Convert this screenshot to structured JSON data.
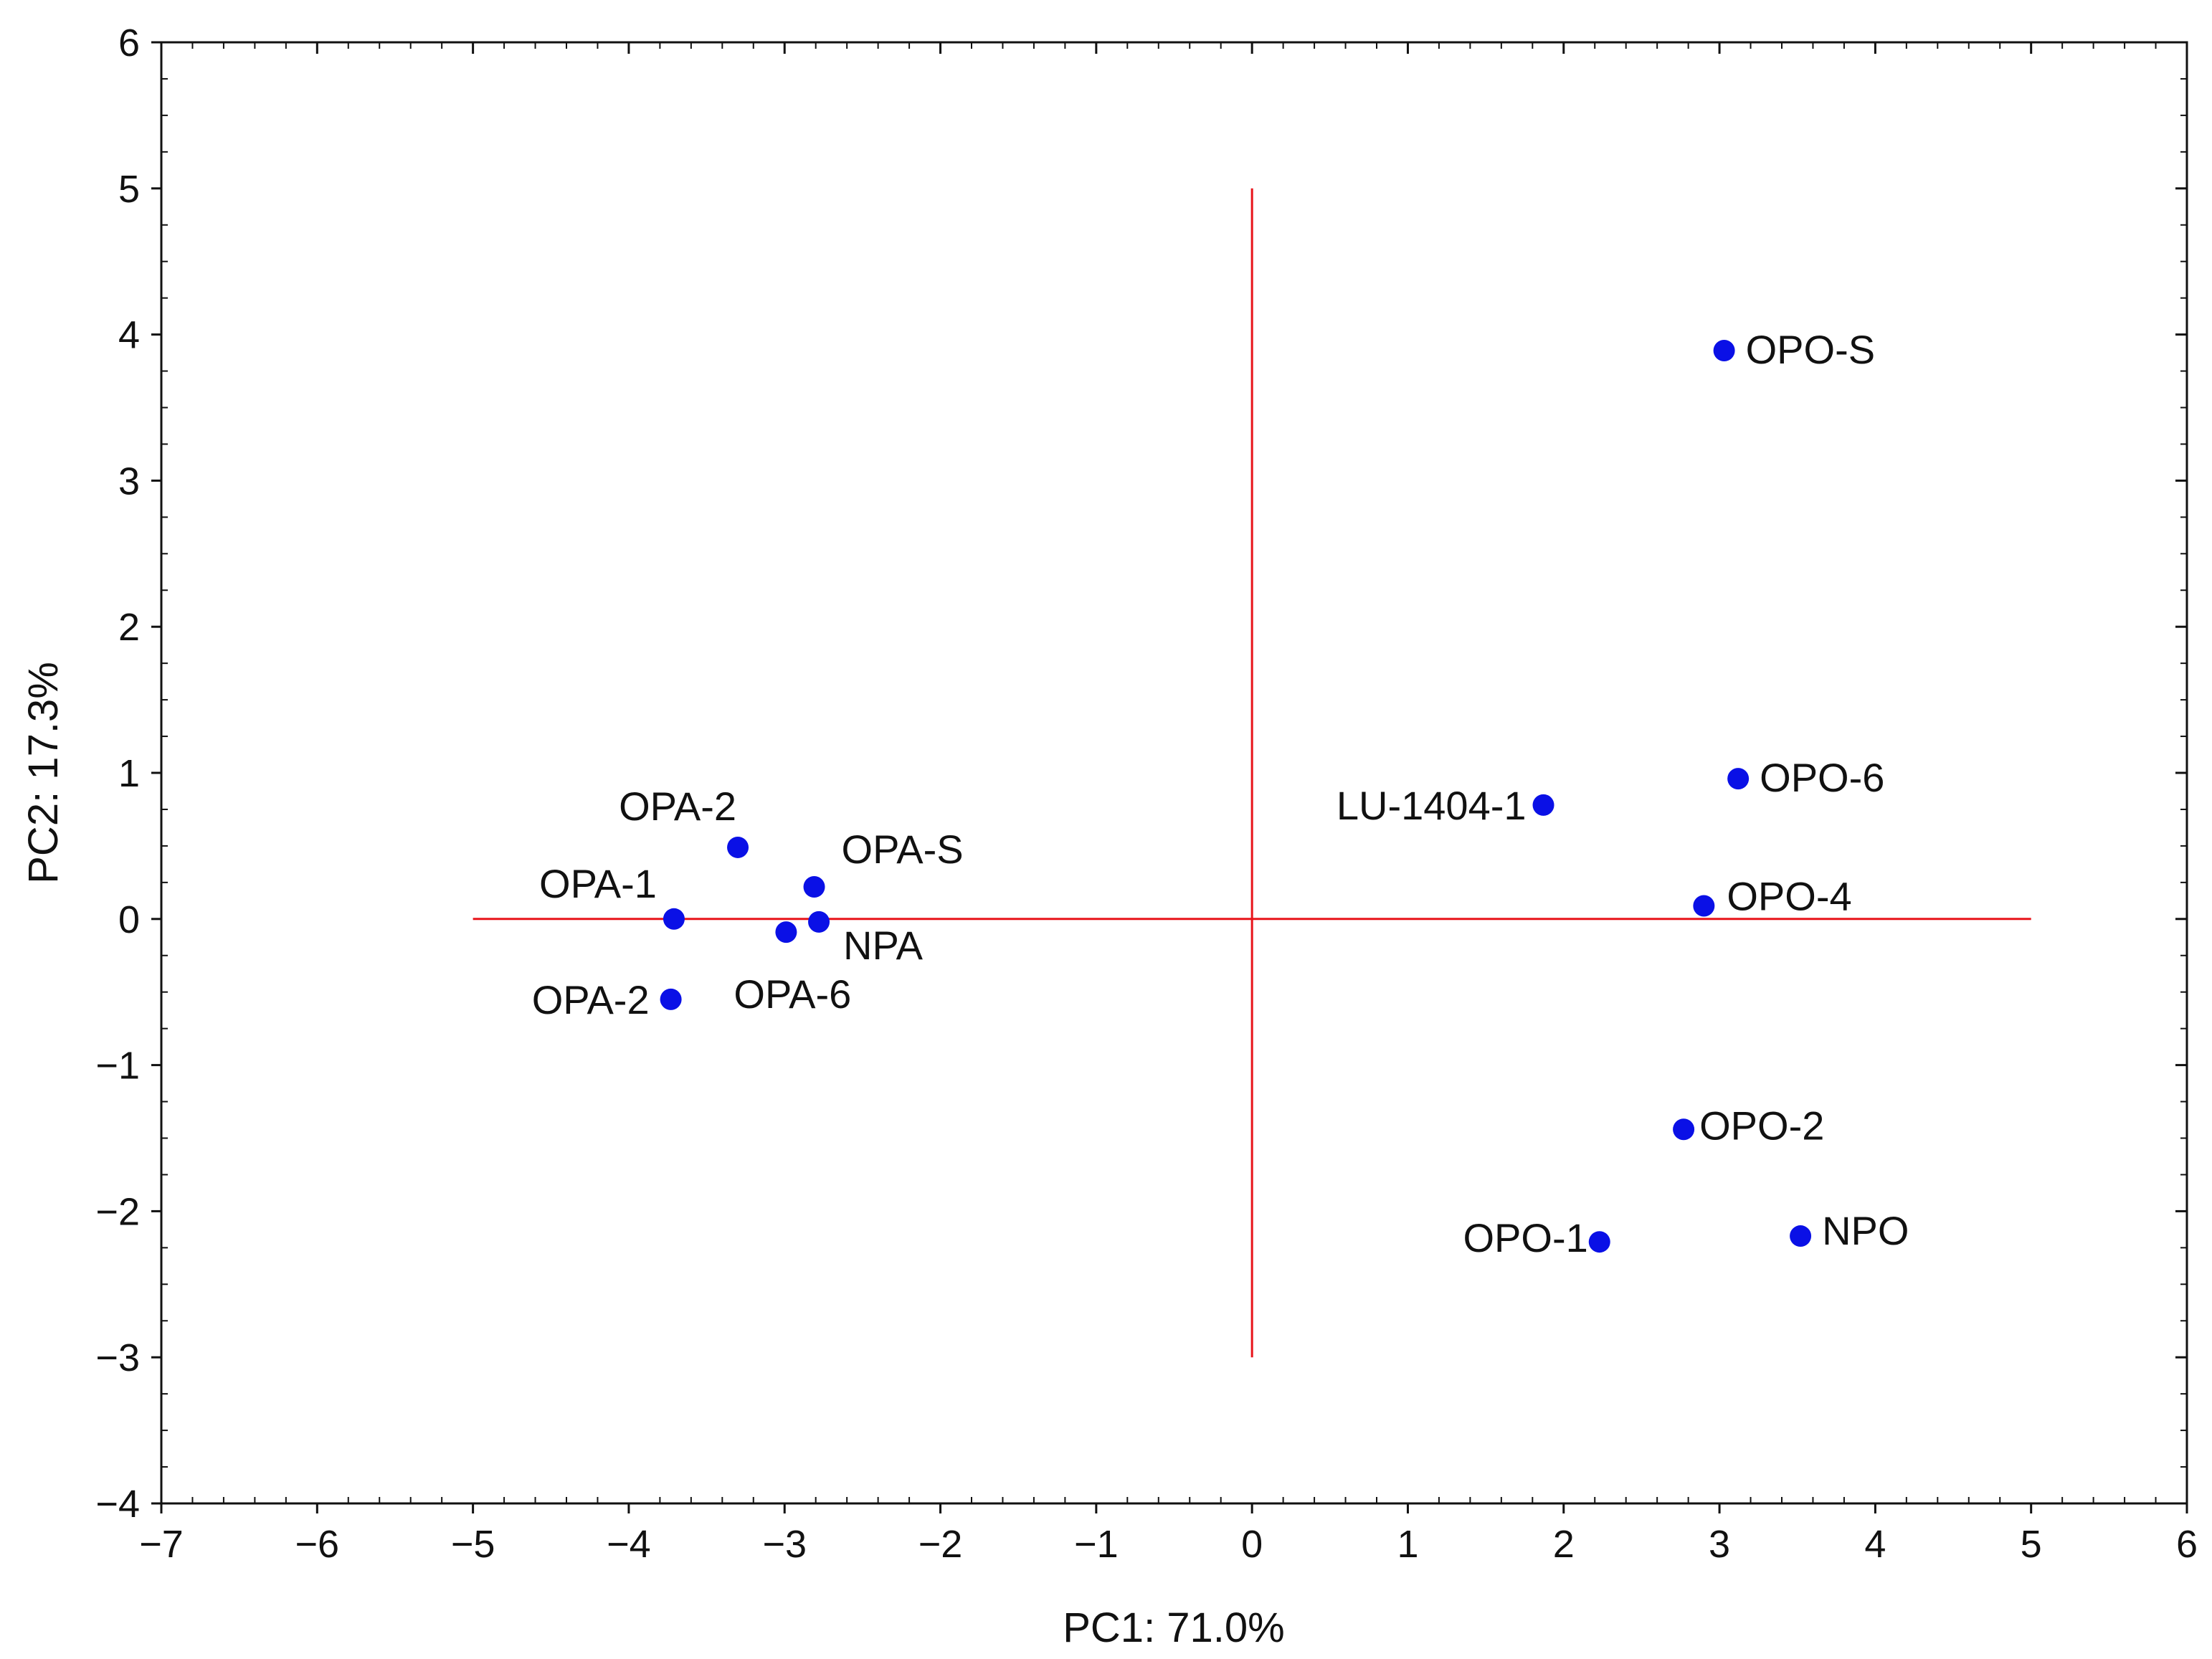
{
  "chart_data": {
    "type": "scatter",
    "xlabel": "PC1: 71.0%",
    "ylabel": "PC2: 17.3%",
    "xlim": [
      -7,
      6
    ],
    "ylim": [
      -4,
      6
    ],
    "x_ticks": [
      "−7",
      "−6",
      "−5",
      "−4",
      "−3",
      "−2",
      "−1",
      "0",
      "1",
      "2",
      "3",
      "4",
      "5",
      "6"
    ],
    "y_ticks": [
      "−4",
      "−3",
      "−2",
      "−1",
      "0",
      "1",
      "2",
      "3",
      "4",
      "5",
      "6"
    ],
    "grid": false,
    "colors": {
      "points": "#0a10e6",
      "reference_lines": "#e8141a",
      "axes": "#111111"
    },
    "reference_lines": {
      "horizontal": {
        "y": 0,
        "x_range": [
          -5,
          5
        ]
      },
      "vertical": {
        "x": 0,
        "y_range": [
          -3,
          5
        ]
      }
    },
    "points": [
      {
        "label": "OPO-S",
        "x": 3.03,
        "y": 3.89
      },
      {
        "label": "OPO-6",
        "x": 3.12,
        "y": 0.96
      },
      {
        "label": "LU-1404-1",
        "x": 1.87,
        "y": 0.78
      },
      {
        "label": "OPO-4",
        "x": 2.9,
        "y": 0.09
      },
      {
        "label": "OPO-2",
        "x": 2.77,
        "y": -1.44
      },
      {
        "label": "NPO",
        "x": 3.52,
        "y": -2.17
      },
      {
        "label": "OPO-1",
        "x": 2.23,
        "y": -2.21
      },
      {
        "label": "OPA-2",
        "x": -3.3,
        "y": 0.49
      },
      {
        "label": "OPA-S",
        "x": -2.81,
        "y": 0.22
      },
      {
        "label": "OPA-1",
        "x": -3.71,
        "y": 0.0
      },
      {
        "label": "NPA",
        "x": -2.78,
        "y": -0.02
      },
      {
        "label": "OPA-6",
        "x": -2.99,
        "y": -0.09
      },
      {
        "label": "OPA-2",
        "x": -3.73,
        "y": -0.55
      }
    ]
  }
}
